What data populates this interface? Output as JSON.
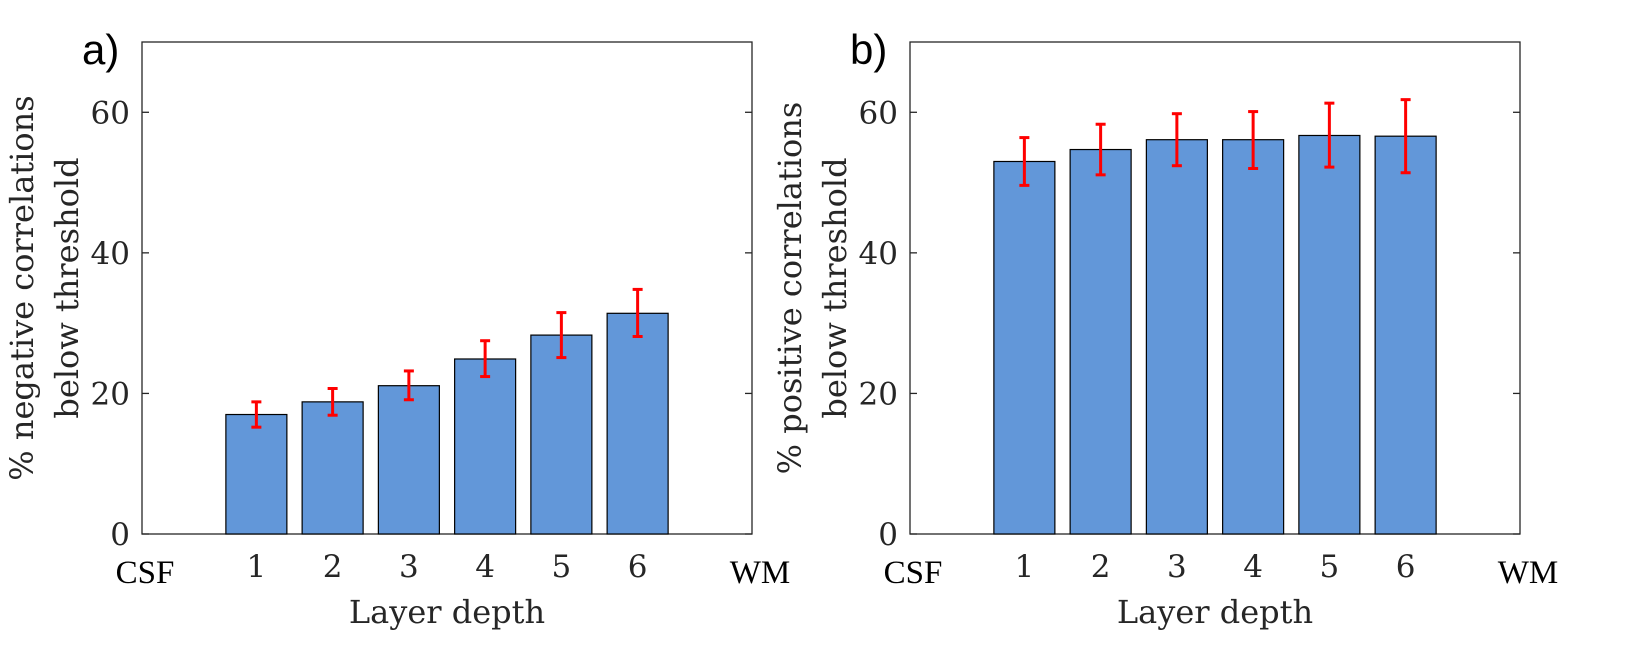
{
  "chart_data": [
    {
      "type": "bar",
      "panel_label": "a)",
      "categories": [
        "1",
        "2",
        "3",
        "4",
        "5",
        "6"
      ],
      "values": [
        17,
        18.8,
        21.1,
        24.9,
        28.3,
        31.4
      ],
      "error_low": [
        15.2,
        16.9,
        19.1,
        22.4,
        25.1,
        28.1
      ],
      "error_high": [
        18.8,
        20.7,
        23.2,
        27.5,
        31.5,
        34.8
      ],
      "edge_labels": {
        "left": "CSF",
        "right": "WM"
      },
      "xlabel": "Layer depth",
      "ylabel_lines": [
        "% negative correlations",
        "below threshold"
      ],
      "yticks": [
        "0",
        "20",
        "40",
        "60"
      ],
      "ylim": [
        0,
        70
      ],
      "bar_color": "#6297d9",
      "error_color": "#ff0000"
    },
    {
      "type": "bar",
      "panel_label": "b)",
      "categories": [
        "1",
        "2",
        "3",
        "4",
        "5",
        "6"
      ],
      "values": [
        53,
        54.7,
        56.1,
        56.1,
        56.7,
        56.6
      ],
      "error_low": [
        49.6,
        51.1,
        52.4,
        52.0,
        52.2,
        51.4
      ],
      "error_high": [
        56.4,
        58.3,
        59.8,
        60.1,
        61.3,
        61.8
      ],
      "edge_labels": {
        "left": "CSF",
        "right": "WM"
      },
      "xlabel": "Layer depth",
      "ylabel_lines": [
        "% positive correlations",
        "below threshold"
      ],
      "yticks": [
        "0",
        "20",
        "40",
        "60"
      ],
      "ylim": [
        0,
        70
      ],
      "bar_color": "#6297d9",
      "error_color": "#ff0000"
    }
  ]
}
